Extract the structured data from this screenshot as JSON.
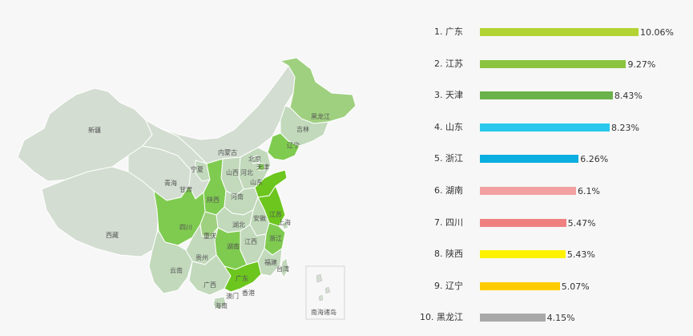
{
  "map": {
    "labels": {
      "xinjiang": "新疆",
      "xizang": "西藏",
      "qinghai": "青海",
      "gansu": "甘肃",
      "neimenggu": "内蒙古",
      "ningxia": "宁夏",
      "heilongjiang": "黑龙江",
      "jilin": "吉林",
      "liaoning": "辽宁",
      "beijing": "北京",
      "tianjin": "天津",
      "hebei": "河北",
      "shanxi": "山西",
      "shaanxi": "陕西",
      "shandong": "山东",
      "henan": "河南",
      "anhui": "安徽",
      "jiangsu": "江苏",
      "shanghai": "上海",
      "hubei": "湖北",
      "sichuan": "四川",
      "chongqing": "重庆",
      "zhejiang": "浙江",
      "jiangxi": "江西",
      "hunan": "湖南",
      "guizhou": "贵州",
      "yunnan": "云南",
      "guangxi": "广西",
      "guangdong": "广东",
      "fujian": "福建",
      "taiwan": "台湾",
      "hongkong": "香港",
      "macau": "澳门",
      "hainan": "海南",
      "south_sea": "南海诸岛"
    },
    "colors": {
      "base": "#d3ddd1",
      "light": "#c2d9bc",
      "medium": "#9fd07f",
      "strong": "#7fcb50",
      "strongest": "#6cc61e"
    }
  },
  "ranking": [
    {
      "rank": "1.",
      "name": "广东",
      "value": 10.06,
      "value_label": "10.06%",
      "color": "#b3d334"
    },
    {
      "rank": "2.",
      "name": "江苏",
      "value": 9.27,
      "value_label": "9.27%",
      "color": "#8bc43f"
    },
    {
      "rank": "3.",
      "name": "天津",
      "value": 8.43,
      "value_label": "8.43%",
      "color": "#6bb24a"
    },
    {
      "rank": "4.",
      "name": "山东",
      "value": 8.23,
      "value_label": "8.23%",
      "color": "#29c8ec"
    },
    {
      "rank": "5.",
      "name": "浙江",
      "value": 6.26,
      "value_label": "6.26%",
      "color": "#0aaee0"
    },
    {
      "rank": "6.",
      "name": "湖南",
      "value": 6.1,
      "value_label": "6.1%",
      "color": "#f2a0a0"
    },
    {
      "rank": "7.",
      "name": "四川",
      "value": 5.47,
      "value_label": "5.47%",
      "color": "#f08080"
    },
    {
      "rank": "8.",
      "name": "陕西",
      "value": 5.43,
      "value_label": "5.43%",
      "color": "#fff200"
    },
    {
      "rank": "9.",
      "name": "辽宁",
      "value": 5.07,
      "value_label": "5.07%",
      "color": "#ffcc00"
    },
    {
      "rank": "10.",
      "name": "黑龙江",
      "value": 4.15,
      "value_label": "4.15%",
      "color": "#a8a8a8"
    }
  ]
}
